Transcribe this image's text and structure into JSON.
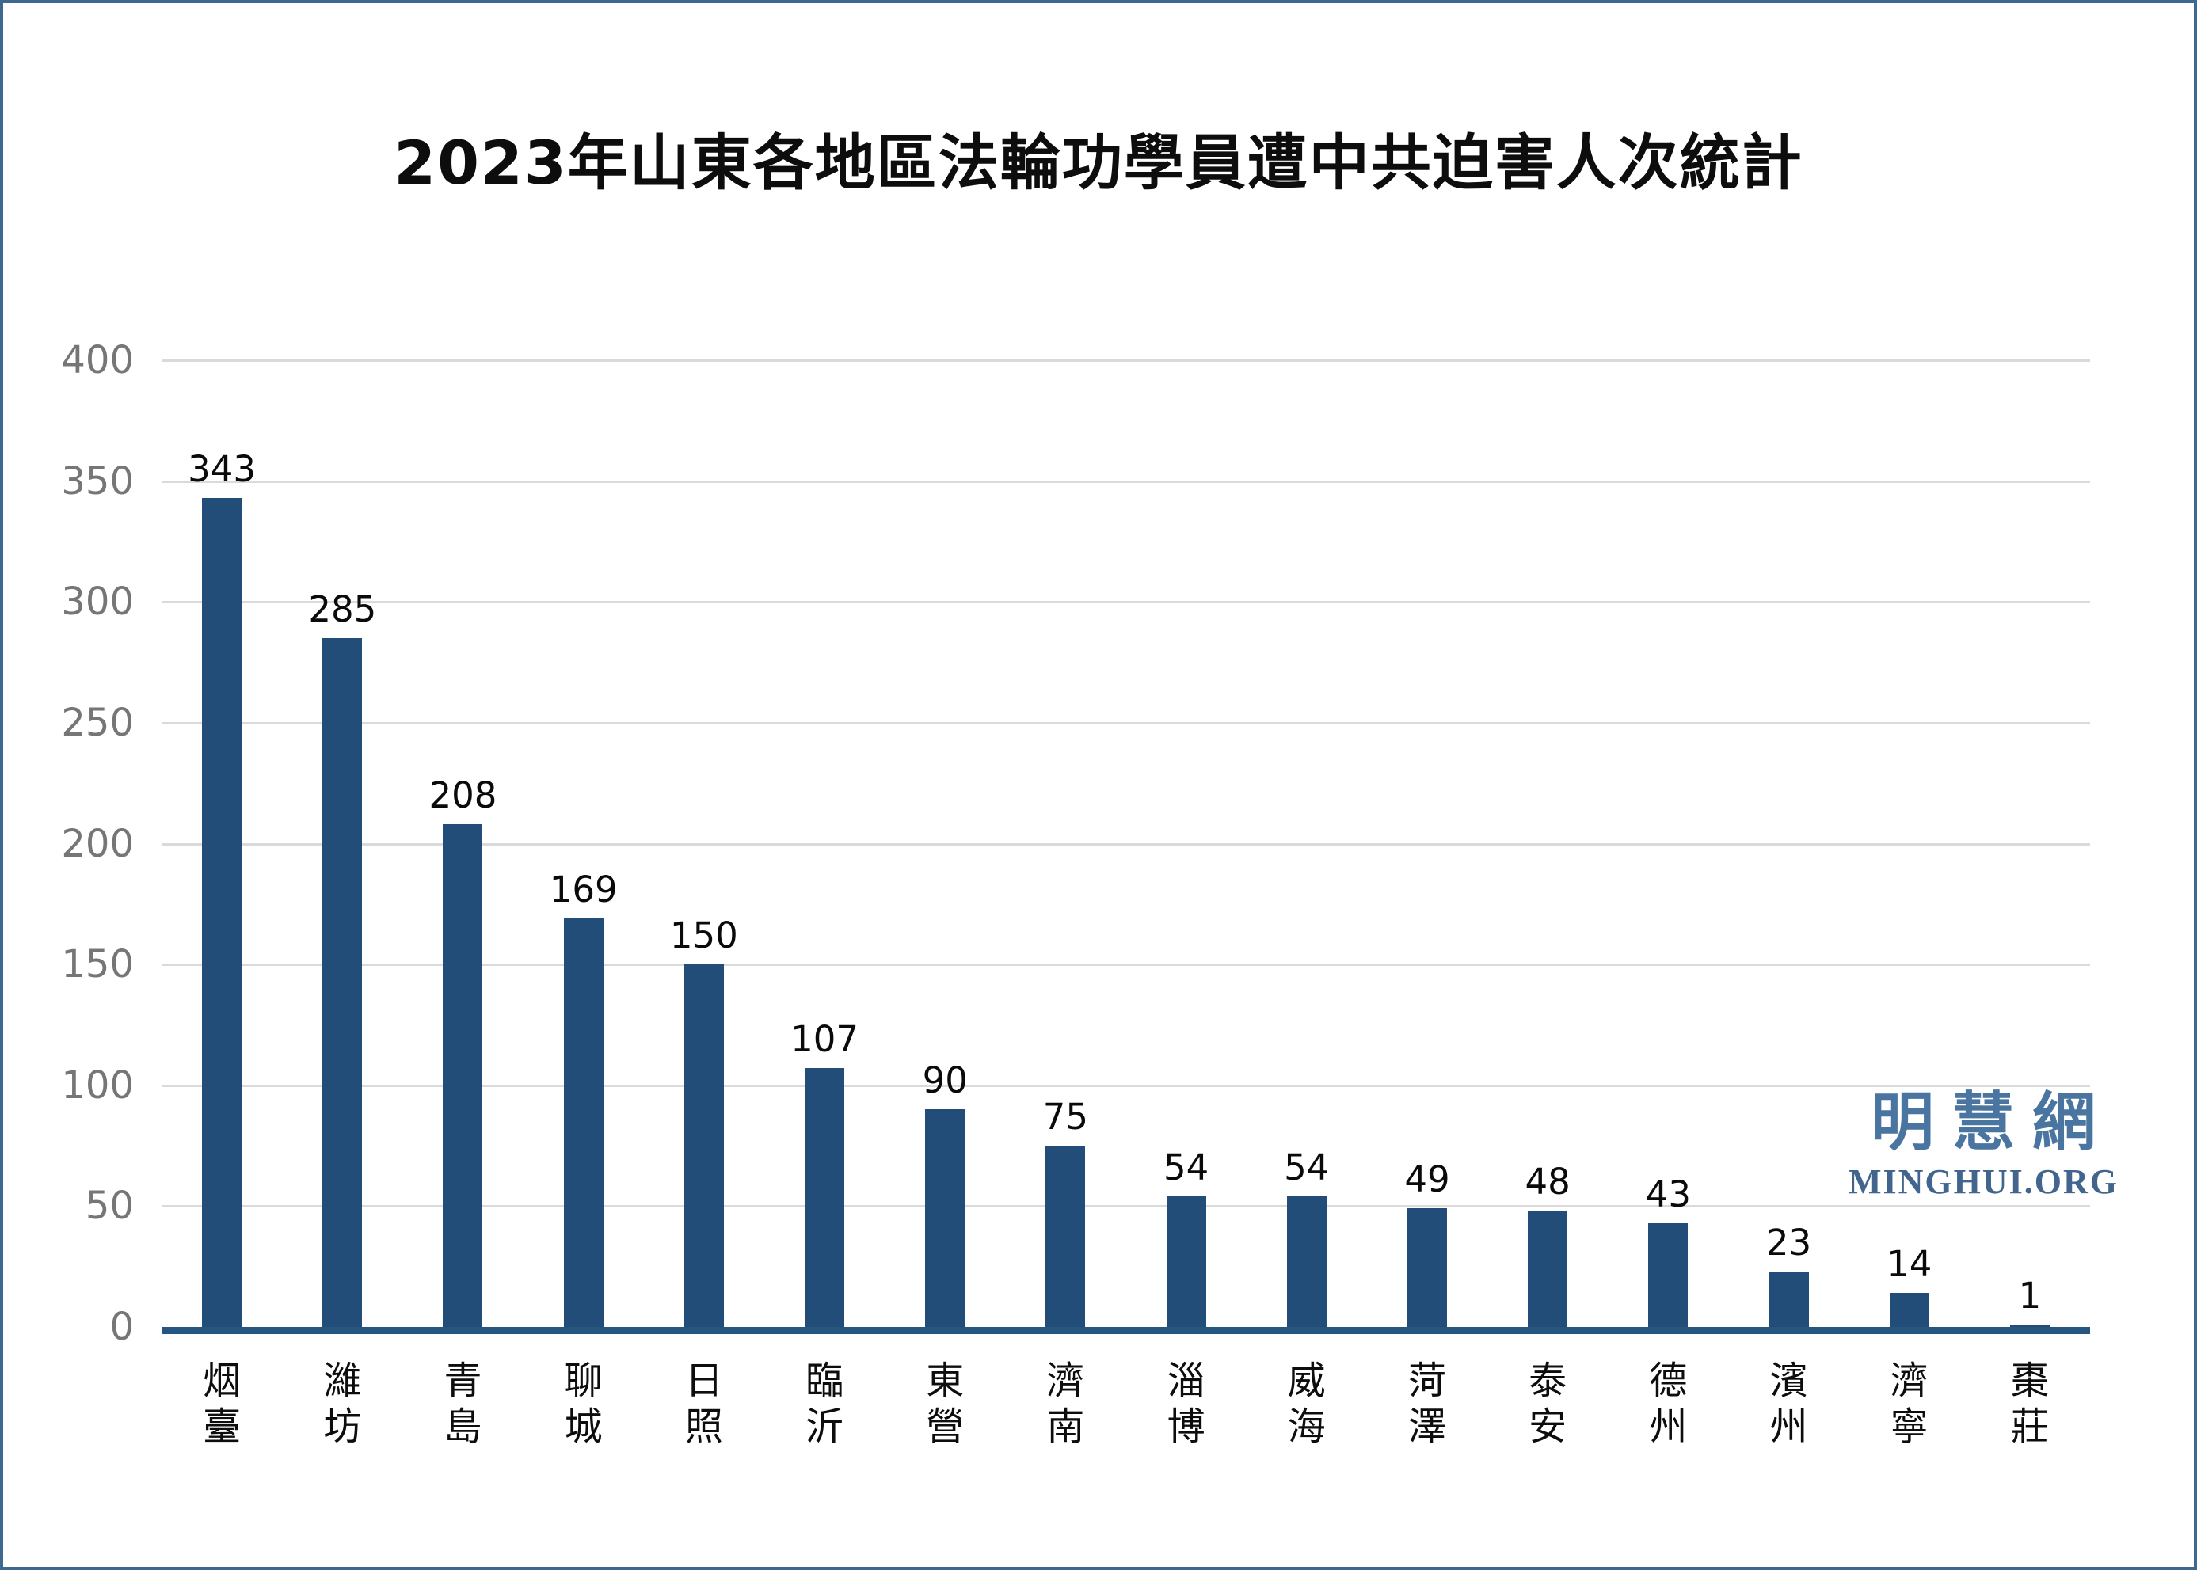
{
  "title": "2023年山東各地區法輪功學員遭中共迫害人次統計",
  "watermark": {
    "cn": "明慧網",
    "en": "MINGHUI.ORG"
  },
  "colors": {
    "bar": "#214d78",
    "axis": "#24567f",
    "gridline": "#dadada",
    "tick_label": "#767676",
    "border": "#3d6890",
    "watermark_cn": "#4a75a0",
    "watermark_en": "#41658d"
  },
  "chart_data": {
    "type": "bar",
    "title": "2023年山東各地區法輪功學員遭中共迫害人次統計",
    "categories": [
      "烟臺",
      "濰坊",
      "青島",
      "聊城",
      "日照",
      "臨沂",
      "東營",
      "濟南",
      "淄博",
      "威海",
      "菏澤",
      "泰安",
      "德州",
      "濱州",
      "濟寧",
      "棗莊"
    ],
    "values": [
      343,
      285,
      208,
      169,
      150,
      107,
      90,
      75,
      54,
      54,
      49,
      48,
      43,
      23,
      14,
      1
    ],
    "xlabel": "",
    "ylabel": "",
    "ylim": [
      0,
      400
    ],
    "ytick_interval": 50,
    "ytick_labels": [
      "400",
      "350",
      "300",
      "250",
      "200",
      "150",
      "100",
      "50",
      "0"
    ],
    "grid": "horizontal",
    "data_labels": true,
    "legend": "none",
    "bar_orientation": "vertical",
    "category_label_orientation": "vertical-stacked"
  }
}
